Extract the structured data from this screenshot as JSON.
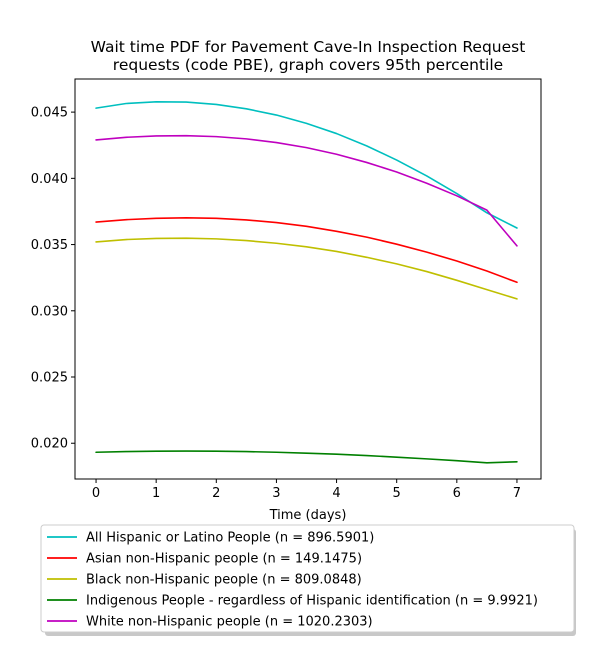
{
  "chart_data": {
    "type": "line",
    "title_lines": [
      "Wait time PDF for Pavement Cave-In Inspection Request",
      "requests (code PBE), graph covers 95th percentile"
    ],
    "xlabel": "Time (days)",
    "ylabel": "",
    "xlim": [
      -0.35,
      7.4
    ],
    "ylim": [
      0.0173,
      0.0475
    ],
    "xticks": [
      0,
      1,
      2,
      3,
      4,
      5,
      6,
      7
    ],
    "yticks": [
      0.02,
      0.025,
      0.03,
      0.035,
      0.04,
      0.045
    ],
    "ytick_labels": [
      "0.020",
      "0.025",
      "0.030",
      "0.035",
      "0.040",
      "0.045"
    ],
    "grid": false,
    "legend_position": "below-plot",
    "x": [
      0,
      0.5,
      1,
      1.5,
      2,
      2.5,
      3,
      3.5,
      4,
      4.5,
      5,
      5.5,
      6,
      6.5,
      7
    ],
    "series": [
      {
        "name": "All Hispanic or Latino People (n = 896.5901)",
        "color": "#00bfbf",
        "values": [
          0.0453,
          0.04565,
          0.04578,
          0.04576,
          0.04558,
          0.04525,
          0.04478,
          0.04415,
          0.04338,
          0.04245,
          0.04138,
          0.04018,
          0.03885,
          0.0374,
          0.03625
        ]
      },
      {
        "name": "Asian non-Hispanic people (n = 149.1475)",
        "color": "#ff0000",
        "values": [
          0.0367,
          0.03688,
          0.03698,
          0.03702,
          0.03698,
          0.03686,
          0.03666,
          0.03638,
          0.036,
          0.03556,
          0.03503,
          0.03443,
          0.03376,
          0.033,
          0.03215
        ]
      },
      {
        "name": "Black non-Hispanic people (n = 809.0848)",
        "color": "#bfbf00",
        "values": [
          0.0352,
          0.03538,
          0.03546,
          0.03548,
          0.03543,
          0.0353,
          0.0351,
          0.03483,
          0.03448,
          0.03404,
          0.03354,
          0.03296,
          0.0323,
          0.0316,
          0.0309
        ]
      },
      {
        "name": "Indigenous People - regardless of Hispanic identification (n = 9.9921)",
        "color": "#008000",
        "values": [
          0.01932,
          0.01937,
          0.0194,
          0.01941,
          0.0194,
          0.01937,
          0.01932,
          0.01925,
          0.01917,
          0.01907,
          0.01895,
          0.01882,
          0.01868,
          0.01852,
          0.0186
        ]
      },
      {
        "name": "White non-Hispanic people (n = 1020.2303)",
        "color": "#bf00bf",
        "values": [
          0.0429,
          0.0431,
          0.0432,
          0.04322,
          0.04315,
          0.04298,
          0.0427,
          0.04232,
          0.04182,
          0.0412,
          0.04048,
          0.03963,
          0.03868,
          0.0376,
          0.0349
        ]
      }
    ]
  }
}
